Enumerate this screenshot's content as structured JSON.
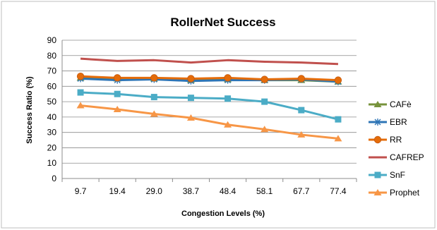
{
  "chart_data": {
    "type": "line",
    "title": "RollerNet Success",
    "xlabel": "Congestion Levels (%)",
    "ylabel": "Success Ratio (%)",
    "categories": [
      "9.7",
      "19.4",
      "29.0",
      "38.7",
      "48.4",
      "58.1",
      "67.7",
      "77.4"
    ],
    "ylim": [
      0,
      90
    ],
    "yticks": [
      0,
      10,
      20,
      30,
      40,
      50,
      60,
      70,
      80,
      90
    ],
    "grid": true,
    "legend_position": "right",
    "series": [
      {
        "name": "CAFè",
        "marker": "triangle",
        "color": "#77933C",
        "values": [
          65.5,
          65,
          65,
          64,
          64.5,
          64,
          64,
          63
        ]
      },
      {
        "name": "EBR",
        "marker": "star",
        "color": "#2E75B6",
        "values": [
          65,
          64,
          64.5,
          63.5,
          64,
          64,
          64.5,
          63
        ]
      },
      {
        "name": "RR",
        "marker": "circle",
        "color": "#E46C0A",
        "values": [
          66.5,
          65.5,
          65.5,
          65,
          65.5,
          64.5,
          65,
          64
        ]
      },
      {
        "name": "CAFREP",
        "marker": "none",
        "color": "#C0504D",
        "values": [
          78,
          76.5,
          77,
          75.5,
          77,
          76,
          75.5,
          74.5
        ]
      },
      {
        "name": "SnF",
        "marker": "square",
        "color": "#4BACC6",
        "values": [
          56,
          55,
          53,
          52.5,
          52,
          50,
          44.5,
          38.5
        ]
      },
      {
        "name": "Prophet",
        "marker": "triangle",
        "color": "#F79646",
        "values": [
          47.5,
          45,
          42,
          39.5,
          35,
          32,
          28.5,
          26
        ]
      }
    ]
  }
}
